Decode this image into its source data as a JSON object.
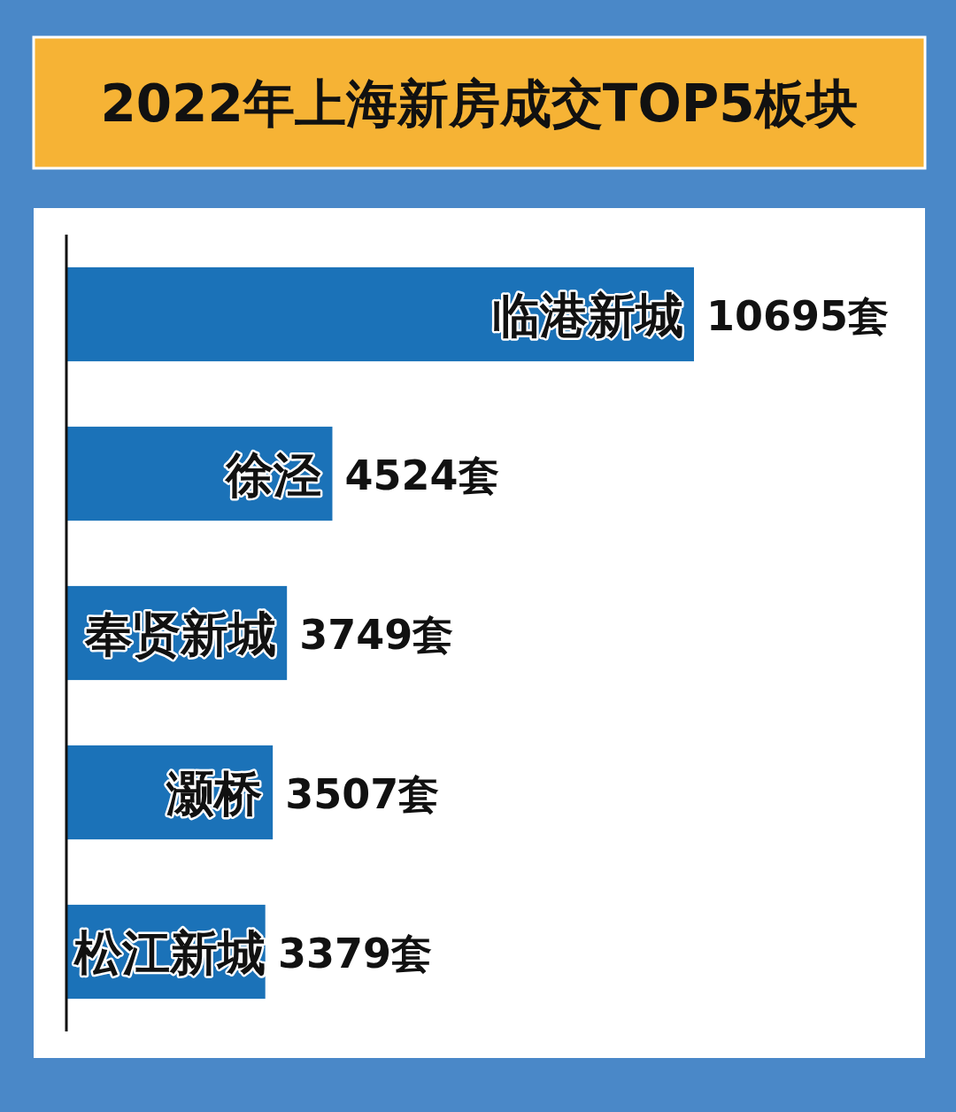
{
  "chart_data": {
    "type": "bar",
    "orientation": "horizontal",
    "title": "2022年上海新房成交TOP5板块",
    "categories": [
      "临港新城",
      "徐泾",
      "奉贤新城",
      "灏桥",
      "松江新城"
    ],
    "values": [
      10695,
      4524,
      3749,
      3507,
      3379
    ],
    "value_labels": [
      "10695套",
      "4524套",
      "3749套",
      "3507套",
      "3379套"
    ],
    "color": "#1b72b8"
  }
}
